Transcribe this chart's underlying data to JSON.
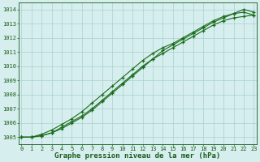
{
  "title": "Graphe pression niveau de la mer (hPa)",
  "xlabel_hours": [
    0,
    1,
    2,
    3,
    4,
    5,
    6,
    7,
    8,
    9,
    10,
    11,
    12,
    13,
    14,
    15,
    16,
    17,
    18,
    19,
    20,
    21,
    22,
    23
  ],
  "series": [
    [
      1005.0,
      1005.0,
      1005.1,
      1005.3,
      1005.7,
      1006.1,
      1006.5,
      1007.0,
      1007.6,
      1008.2,
      1008.8,
      1009.4,
      1010.0,
      1010.5,
      1010.9,
      1011.3,
      1011.7,
      1012.1,
      1012.5,
      1012.9,
      1013.2,
      1013.4,
      1013.5,
      1013.6
    ],
    [
      1005.0,
      1005.0,
      1005.2,
      1005.5,
      1005.9,
      1006.3,
      1006.8,
      1007.4,
      1008.0,
      1008.6,
      1009.2,
      1009.8,
      1010.4,
      1010.9,
      1011.3,
      1011.6,
      1012.0,
      1012.4,
      1012.8,
      1013.2,
      1013.5,
      1013.7,
      1013.8,
      1013.6
    ],
    [
      1005.0,
      1005.0,
      1005.1,
      1005.3,
      1005.6,
      1006.0,
      1006.4,
      1006.9,
      1007.5,
      1008.1,
      1008.7,
      1009.3,
      1009.9,
      1010.5,
      1011.1,
      1011.5,
      1011.9,
      1012.3,
      1012.7,
      1013.1,
      1013.4,
      1013.7,
      1014.0,
      1013.8
    ]
  ],
  "line_color": "#1a6b1a",
  "marker_color": "#1a6b1a",
  "bg_color": "#d6eeee",
  "grid_color": "#a8d0d0",
  "axis_label_color": "#1a5c1a",
  "title_color": "#1a5c1a",
  "ylim": [
    1004.5,
    1014.5
  ],
  "xlim": [
    -0.3,
    23.3
  ],
  "yticks": [
    1005,
    1006,
    1007,
    1008,
    1009,
    1010,
    1011,
    1012,
    1013,
    1014
  ],
  "xticks": [
    0,
    1,
    2,
    3,
    4,
    5,
    6,
    7,
    8,
    9,
    10,
    11,
    12,
    13,
    14,
    15,
    16,
    17,
    18,
    19,
    20,
    21,
    22,
    23
  ],
  "title_fontsize": 6.5,
  "tick_fontsize": 5.0,
  "line_width": 0.8,
  "marker_size": 3.0
}
